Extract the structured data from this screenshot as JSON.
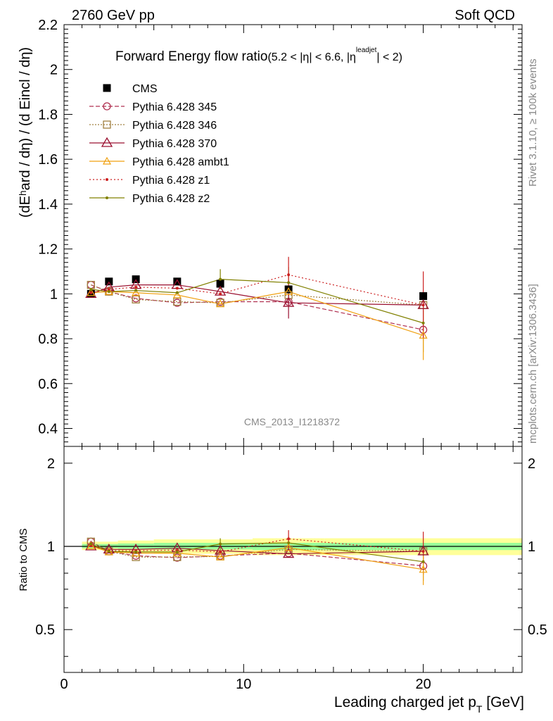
{
  "header": {
    "left": "2760 GeV pp",
    "right": "Soft QCD"
  },
  "side_texts": {
    "rivet": "Rivet 3.1.10, ≥ 100k events",
    "mcplots": "mcplots.cern.ch [arXiv:1306.3436]"
  },
  "colors": {
    "cms": "#000000",
    "p345": "#b03050",
    "p346": "#a08040",
    "p370": "#9a1030",
    "ambt1": "#f0a010",
    "z1": "#cc2020",
    "z2": "#808000",
    "band_outer": "#ffff99",
    "band_inner": "#99ff99"
  },
  "chart_data": [
    {
      "type": "scatter",
      "title": "Forward Energy flow ratio",
      "title_suffix": "(5.2 < |η| < 6.6, |η",
      "title_sup": "leadjet",
      "title_end": "| < 2)",
      "ylabel": "(dEʰard / dη) / (d Eincl / dη)",
      "watermark": "CMS_2013_I1218372",
      "xlim": [
        0,
        25.5
      ],
      "ylim": [
        0.32,
        2.2
      ],
      "yticks": [
        0.4,
        0.6,
        0.8,
        1,
        1.2,
        1.4,
        1.6,
        1.8,
        2,
        2.2
      ],
      "ytick_labels": [
        "0.4",
        "0.6",
        "0.8",
        "1",
        "1.2",
        "1.4",
        "1.6",
        "1.8",
        "2",
        "2.2"
      ],
      "x": [
        1.5,
        2.5,
        4,
        6.3,
        8.7,
        12.5,
        20
      ],
      "series": [
        {
          "name": "CMS",
          "key": "cms",
          "values": [
            1.0,
            1.055,
            1.065,
            1.055,
            1.045,
            1.02,
            0.99
          ],
          "marker": "square"
        },
        {
          "name": "Pythia 6.428 345",
          "key": "p345",
          "values": [
            1.04,
            1.01,
            0.98,
            0.96,
            0.965,
            0.965,
            0.84
          ],
          "marker": "circle",
          "dash": "6,3"
        },
        {
          "name": "Pythia 6.428 346",
          "key": "p346",
          "values": [
            1.04,
            1.01,
            0.975,
            0.965,
            0.96,
            0.995,
            0.95
          ],
          "marker": "square-open",
          "dash": "2,2"
        },
        {
          "name": "Pythia 6.428 370",
          "key": "p370",
          "values": [
            1.0,
            1.03,
            1.04,
            1.04,
            1.01,
            0.96,
            0.95
          ],
          "marker": "triangle",
          "dash": ""
        },
        {
          "name": "Pythia 6.428 ambt1",
          "key": "ambt1",
          "values": [
            1.005,
            1.01,
            1.005,
            0.995,
            0.955,
            1.01,
            0.815
          ],
          "marker": "triangle-small",
          "dash": ""
        },
        {
          "name": "Pythia 6.428 z1",
          "key": "z1",
          "values": [
            1.005,
            1.02,
            1.03,
            1.025,
            1.0,
            1.085,
            0.95
          ],
          "marker": "dot",
          "dash": "2,3"
        },
        {
          "name": "Pythia 6.428 z2",
          "key": "z2",
          "values": [
            1.02,
            1.01,
            1.015,
            1.005,
            1.065,
            1.05,
            0.87
          ],
          "marker": "dot",
          "dash": ""
        }
      ]
    },
    {
      "type": "scatter",
      "ylabel": "Ratio to CMS",
      "xlabel": "Leading charged jet p",
      "xlabel_sub": "T",
      "xlabel_end": " [GeV]",
      "xlim": [
        0,
        25.5
      ],
      "ylim": [
        0.35,
        2.3
      ],
      "scale": "log",
      "yticks": [
        0.5,
        1,
        2
      ],
      "ytick_labels": [
        "0.5",
        "1",
        "2"
      ],
      "xticks": [
        0,
        10,
        20
      ],
      "xtick_labels": [
        "0",
        "10",
        "20"
      ],
      "x": [
        1.5,
        2.5,
        4,
        6.3,
        8.7,
        12.5,
        20
      ],
      "series": [
        {
          "name": "Pythia 6.428 345",
          "key": "p345",
          "values": [
            1.04,
            0.96,
            0.925,
            0.91,
            0.925,
            0.945,
            0.85
          ]
        },
        {
          "name": "Pythia 6.428 346",
          "key": "p346",
          "values": [
            1.04,
            0.96,
            0.915,
            0.915,
            0.92,
            0.975,
            0.96
          ]
        },
        {
          "name": "Pythia 6.428 370",
          "key": "p370",
          "values": [
            1.0,
            0.975,
            0.975,
            0.985,
            0.965,
            0.94,
            0.96
          ]
        },
        {
          "name": "Pythia 6.428 ambt1",
          "key": "ambt1",
          "values": [
            1.005,
            0.955,
            0.945,
            0.945,
            0.915,
            0.99,
            0.825
          ]
        },
        {
          "name": "Pythia 6.428 z1",
          "key": "z1",
          "values": [
            1.005,
            0.965,
            0.965,
            0.97,
            0.955,
            1.065,
            0.96
          ]
        },
        {
          "name": "Pythia 6.428 z2",
          "key": "z2",
          "values": [
            1.02,
            0.96,
            0.955,
            0.955,
            1.02,
            1.03,
            0.88
          ]
        }
      ]
    }
  ]
}
